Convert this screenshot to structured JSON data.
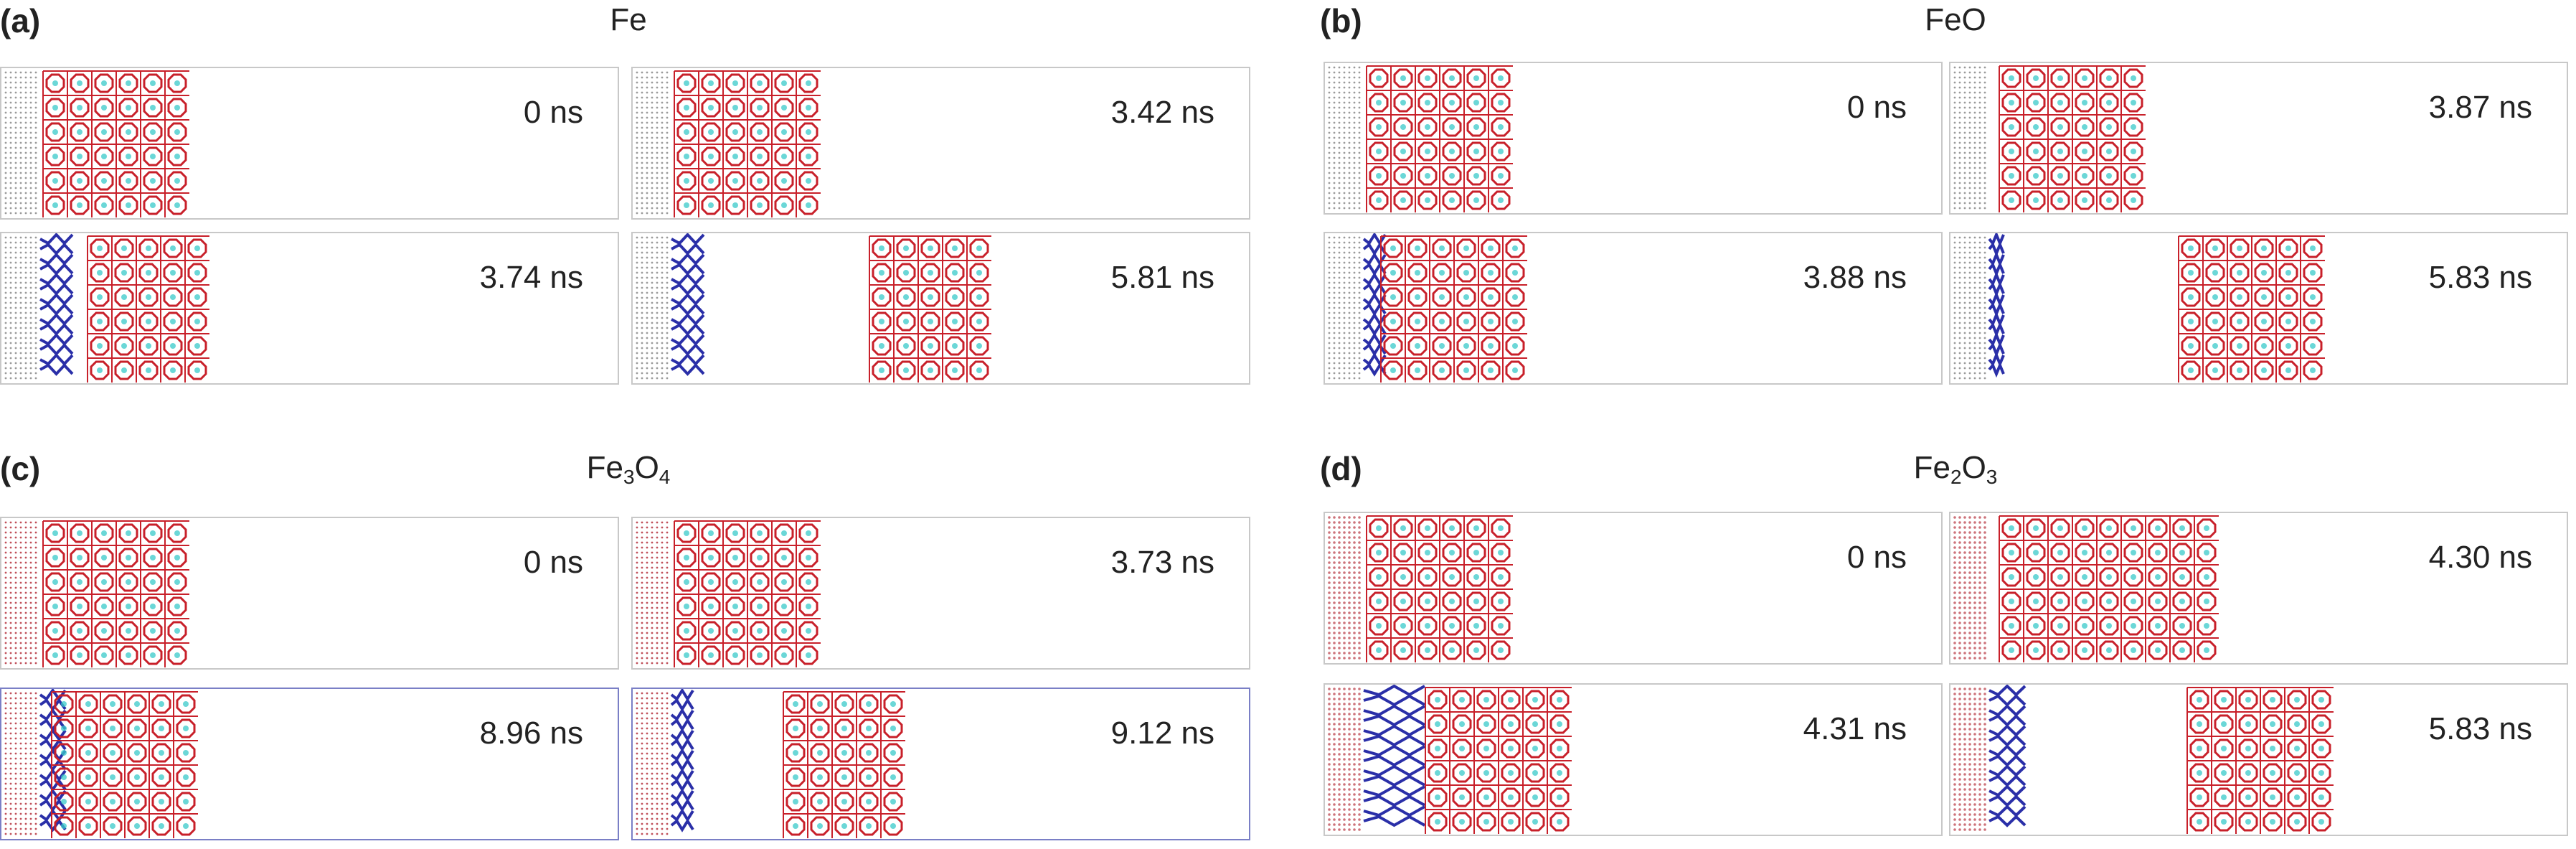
{
  "panels": [
    {
      "label": "(a)",
      "title_main": "Fe",
      "title_sub1": "",
      "title_mid": "",
      "title_sub2": "",
      "substrate": "dots-grey",
      "frames": [
        {
          "time": "0 ns"
        },
        {
          "time": "3.42 ns"
        },
        {
          "time": "3.74 ns"
        },
        {
          "time": "5.81 ns"
        }
      ]
    },
    {
      "label": "(b)",
      "title_main": "FeO",
      "title_sub1": "",
      "title_mid": "",
      "title_sub2": "",
      "substrate": "dots-dark",
      "frames": [
        {
          "time": "0 ns"
        },
        {
          "time": "3.87 ns"
        },
        {
          "time": "3.88 ns"
        },
        {
          "time": "5.83 ns"
        }
      ]
    },
    {
      "label": "(c)",
      "title_main": "Fe",
      "title_sub1": "3",
      "title_mid": "O",
      "title_sub2": "4",
      "substrate": "dots-red",
      "frames": [
        {
          "time": "0 ns"
        },
        {
          "time": "3.73 ns"
        },
        {
          "time": "8.96 ns"
        },
        {
          "time": "9.12 ns"
        }
      ]
    },
    {
      "label": "(d)",
      "title_main": "Fe",
      "title_sub1": "2",
      "title_mid": "O",
      "title_sub2": "3",
      "substrate": "lattice-red",
      "frames": [
        {
          "time": "0 ns"
        },
        {
          "time": "4.30 ns"
        },
        {
          "time": "4.31 ns"
        },
        {
          "time": "5.83 ns"
        }
      ]
    }
  ],
  "colors": {
    "framework": "#c8202a",
    "polymer": "#2a2fa8",
    "atom": "#39c9c9",
    "substrate_grey": "#9a9a9a",
    "substrate_red": "#c0505a"
  }
}
